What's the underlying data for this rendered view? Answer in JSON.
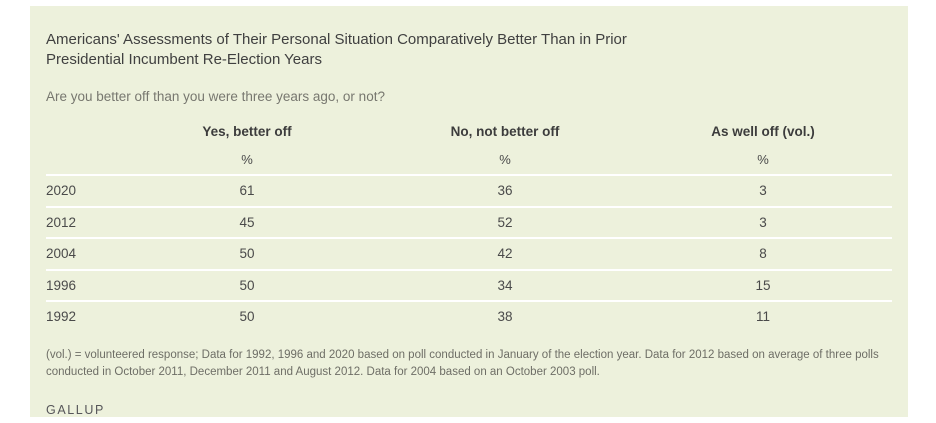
{
  "colors": {
    "panel_bg": "#edf1dc",
    "separator_color": "#ffffff",
    "title_color": "#404040",
    "muted_color": "#77776f",
    "footnote_color": "#6e6e66",
    "brand_color": "#565659"
  },
  "header": {
    "title_lines": [
      "Americans' Assessments of Their Personal Situation Comparatively Better Than in Prior",
      "Presidential Incumbent Re-Election Years"
    ],
    "question": "Are you better off than you were three years ago, or not?"
  },
  "chart_data": {
    "type": "table",
    "title": "Americans' Assessments of Their Personal Situation Comparatively Better Than in Prior Presidential Incumbent Re-Election Years",
    "question": "Are you better off than you were three years ago, or not?",
    "columns": [
      "Yes, better off",
      "No, not better off",
      "As well off (vol.)"
    ],
    "unit": "%",
    "categories": [
      "2020",
      "2012",
      "2004",
      "1996",
      "1992"
    ],
    "series": [
      {
        "name": "Yes, better off",
        "values": [
          61,
          45,
          50,
          50,
          50
        ]
      },
      {
        "name": "No, not better off",
        "values": [
          36,
          52,
          42,
          34,
          38
        ]
      },
      {
        "name": "As well off (vol.)",
        "values": [
          3,
          3,
          8,
          15,
          11
        ]
      }
    ],
    "rows": [
      [
        "2020",
        "61",
        "36",
        "3"
      ],
      [
        "2012",
        "45",
        "52",
        "3"
      ],
      [
        "2004",
        "50",
        "42",
        "8"
      ],
      [
        "1996",
        "50",
        "34",
        "15"
      ],
      [
        "1992",
        "50",
        "38",
        "11"
      ]
    ]
  },
  "footnote": "(vol.) = volunteered response; Data for 1992, 1996 and 2020 based on poll conducted in January of the election year. Data for 2012 based on average of three polls conducted in October 2011, December 2011 and August 2012. Data for 2004 based on an October 2003 poll.",
  "brand": "GALLUP"
}
